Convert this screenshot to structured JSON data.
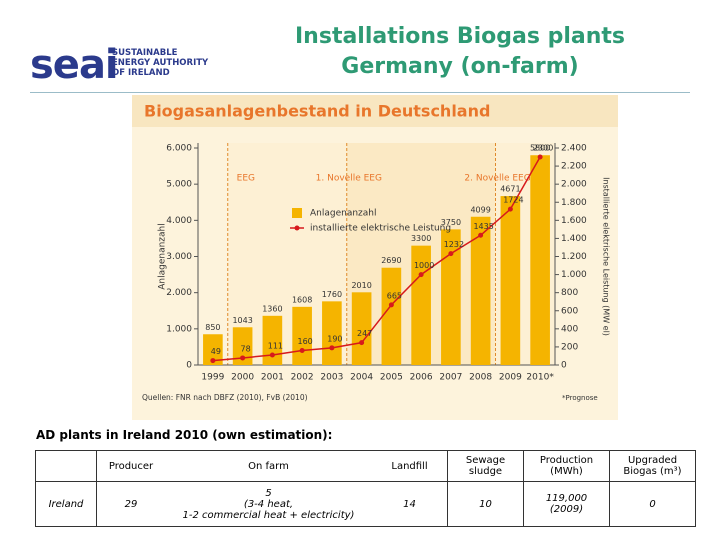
{
  "header": {
    "logo": "seai",
    "logo_subtitle": [
      "SUSTAINABLE",
      "ENERGY AUTHORITY",
      "OF IRELAND"
    ],
    "title": [
      "Installations Biogas plants",
      "Germany (on-farm)"
    ]
  },
  "chart_data": {
    "type": "bar",
    "title": "Biogasanlagenbestand in Deutschland",
    "categories": [
      "1999",
      "2000",
      "2001",
      "2002",
      "2003",
      "2004",
      "2005",
      "2006",
      "2007",
      "2008",
      "2009",
      "2010*"
    ],
    "series": [
      {
        "name": "Anlagenanzahl",
        "color": "#f5b400",
        "values": [
          850,
          1043,
          1360,
          1608,
          1760,
          2010,
          2690,
          3300,
          3750,
          4099,
          4671,
          5800
        ]
      },
      {
        "name": "installierte elektrische Leistung",
        "color": "#d7191c",
        "axis": "y2",
        "type": "line",
        "values": [
          49,
          78,
          111,
          160,
          190,
          247,
          665,
          1000,
          1232,
          1435,
          1724,
          2300
        ]
      }
    ],
    "ylabel": "Anlagenanzahl",
    "y2label": "Installierte elektrische Leistung (MW el)",
    "ylim": [
      0,
      6000
    ],
    "yticks": [
      0,
      {
        "value": 1000,
        "label": "1.000"
      },
      {
        "value": 2000,
        "label": "2.000"
      },
      {
        "value": 3000,
        "label": "3.000"
      },
      {
        "value": 4000,
        "label": "4.000"
      },
      {
        "value": 5000,
        "label": "5.000"
      },
      {
        "value": 6000,
        "label": "6.000"
      }
    ],
    "y2lim": [
      0,
      2400
    ],
    "y2ticks": [
      0,
      200,
      400,
      600,
      800,
      {
        "value": 1000,
        "label": "1.000"
      },
      {
        "value": 1200,
        "label": "1.200"
      },
      {
        "value": 1400,
        "label": "1.400"
      },
      {
        "value": 1600,
        "label": "1.600"
      },
      {
        "value": 1800,
        "label": "1.800"
      },
      {
        "value": 2000,
        "label": "2.000"
      },
      {
        "value": 2200,
        "label": "2.200"
      },
      {
        "value": 2400,
        "label": "2.400"
      }
    ],
    "annotations": [
      "EEG",
      "1. Novelle EEG",
      "2. Novelle EEG"
    ],
    "source": "Quellen: FNR nach DBFZ (2010), FvB (2010)",
    "footnote": "*Prognose"
  },
  "table": {
    "caption": "AD plants in Ireland 2010 (own estimation):",
    "header": [
      "",
      "Producer",
      "On farm",
      "Landfill",
      "Sewage sludge",
      "Production (MWh)",
      "Upgraded Biogas (m³)"
    ],
    "rows": [
      [
        [
          "Ireland"
        ],
        [
          "29"
        ],
        [
          "5",
          "(3-4 heat,",
          "1-2 commercial heat + electricity)"
        ],
        [
          "14"
        ],
        [
          "10"
        ],
        [
          "119,000",
          "(2009)"
        ],
        [
          "0"
        ]
      ]
    ]
  }
}
